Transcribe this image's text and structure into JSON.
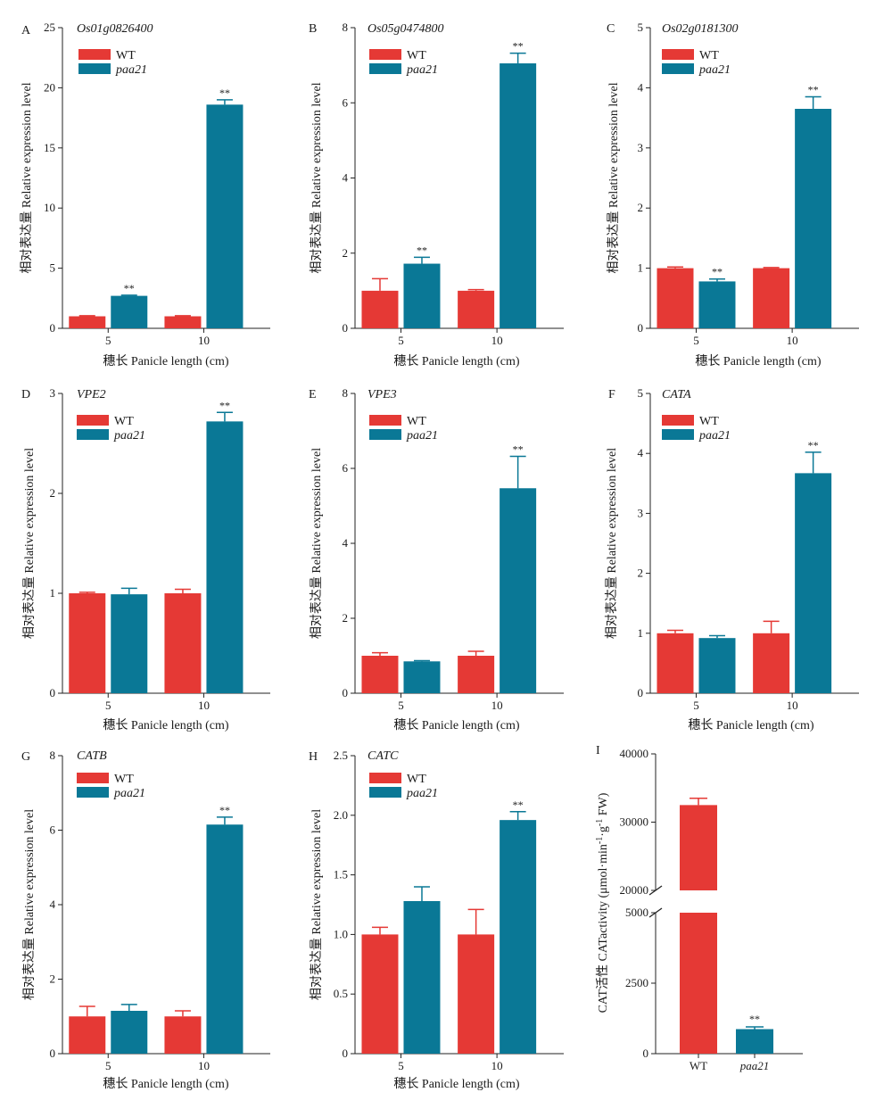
{
  "colors": {
    "WT": "#e53935",
    "paa21": "#0a7896",
    "axis": "#222222"
  },
  "legend": {
    "wt": "WT",
    "paa21": "paa21"
  },
  "chart_data": [
    {
      "type": "bar",
      "panel": "A",
      "gene": "Os01g0826400",
      "categories": [
        "5",
        "10"
      ],
      "xlabel": "穗长 Panicle length (cm)",
      "ylabel": "相对表达量 Relative expression level",
      "ylim": [
        0,
        25
      ],
      "yticks": [
        0,
        5,
        10,
        15,
        20,
        25
      ],
      "series": [
        {
          "name": "WT",
          "values": [
            1.0,
            1.0
          ],
          "errors": [
            0.05,
            0.05
          ],
          "sig": [
            "",
            ""
          ]
        },
        {
          "name": "paa21",
          "values": [
            2.7,
            18.6
          ],
          "errors": [
            0.05,
            0.4
          ],
          "sig": [
            "**",
            "**"
          ]
        }
      ]
    },
    {
      "type": "bar",
      "panel": "B",
      "gene": "Os05g0474800",
      "categories": [
        "5",
        "10"
      ],
      "xlabel": "穗长 Panicle length (cm)",
      "ylabel": "相对表达量 Relative expression level",
      "ylim": [
        0,
        8
      ],
      "yticks": [
        0,
        2,
        4,
        6,
        8
      ],
      "series": [
        {
          "name": "WT",
          "values": [
            1.0,
            1.0
          ],
          "errors": [
            0.32,
            0.03
          ],
          "sig": [
            "",
            ""
          ]
        },
        {
          "name": "paa21",
          "values": [
            1.72,
            7.05
          ],
          "errors": [
            0.17,
            0.27
          ],
          "sig": [
            "**",
            "**"
          ]
        }
      ]
    },
    {
      "type": "bar",
      "panel": "C",
      "gene": "Os02g0181300",
      "categories": [
        "5",
        "10"
      ],
      "xlabel": "穗长 Panicle length (cm)",
      "ylabel": "相对表达量 Relative expression level",
      "ylim": [
        0,
        5
      ],
      "yticks": [
        0,
        1,
        2,
        3,
        4,
        5
      ],
      "series": [
        {
          "name": "WT",
          "values": [
            1.0,
            1.0
          ],
          "errors": [
            0.02,
            0.01
          ],
          "sig": [
            "",
            ""
          ]
        },
        {
          "name": "paa21",
          "values": [
            0.78,
            3.65
          ],
          "errors": [
            0.04,
            0.2
          ],
          "sig": [
            "**",
            "**"
          ]
        }
      ]
    },
    {
      "type": "bar",
      "panel": "D",
      "gene": "VPE2",
      "categories": [
        "5",
        "10"
      ],
      "xlabel": "穗长 Panicle length (cm)",
      "ylabel": "相对表达量 Relative expression level",
      "ylim": [
        0,
        3
      ],
      "yticks": [
        0,
        1,
        2,
        3
      ],
      "series": [
        {
          "name": "WT",
          "values": [
            1.0,
            1.0
          ],
          "errors": [
            0.01,
            0.04
          ],
          "sig": [
            "",
            ""
          ]
        },
        {
          "name": "paa21",
          "values": [
            0.99,
            2.72
          ],
          "errors": [
            0.06,
            0.09
          ],
          "sig": [
            "",
            "**"
          ]
        }
      ]
    },
    {
      "type": "bar",
      "panel": "E",
      "gene": "VPE3",
      "categories": [
        "5",
        "10"
      ],
      "xlabel": "穗长 Panicle length (cm)",
      "ylabel": "相对表达量 Relative expression level",
      "ylim": [
        0,
        8
      ],
      "yticks": [
        0,
        2,
        4,
        6,
        8
      ],
      "series": [
        {
          "name": "WT",
          "values": [
            1.0,
            1.0
          ],
          "errors": [
            0.08,
            0.12
          ],
          "sig": [
            "",
            ""
          ]
        },
        {
          "name": "paa21",
          "values": [
            0.85,
            5.47
          ],
          "errors": [
            0.02,
            0.85
          ],
          "sig": [
            "",
            "**"
          ]
        }
      ]
    },
    {
      "type": "bar",
      "panel": "F",
      "gene": "CATA",
      "categories": [
        "5",
        "10"
      ],
      "xlabel": "穗长 Panicle length (cm)",
      "ylabel": "相对表达量 Relative expression level",
      "ylim": [
        0,
        5
      ],
      "yticks": [
        0,
        1,
        2,
        3,
        4,
        5
      ],
      "series": [
        {
          "name": "WT",
          "values": [
            1.0,
            1.0
          ],
          "errors": [
            0.05,
            0.2
          ],
          "sig": [
            "",
            ""
          ]
        },
        {
          "name": "paa21",
          "values": [
            0.92,
            3.67
          ],
          "errors": [
            0.04,
            0.35
          ],
          "sig": [
            "",
            "**"
          ]
        }
      ]
    },
    {
      "type": "bar",
      "panel": "G",
      "gene": "CATB",
      "categories": [
        "5",
        "10"
      ],
      "xlabel": "穗长 Panicle length (cm)",
      "ylabel": "相对表达量 Relative expression level",
      "ylim": [
        0,
        8
      ],
      "yticks": [
        0,
        2,
        4,
        6,
        8
      ],
      "series": [
        {
          "name": "WT",
          "values": [
            1.0,
            1.0
          ],
          "errors": [
            0.27,
            0.15
          ],
          "sig": [
            "",
            ""
          ]
        },
        {
          "name": "paa21",
          "values": [
            1.15,
            6.15
          ],
          "errors": [
            0.17,
            0.2
          ],
          "sig": [
            "",
            "**"
          ]
        }
      ]
    },
    {
      "type": "bar",
      "panel": "H",
      "gene": "CATC",
      "categories": [
        "5",
        "10"
      ],
      "xlabel": "穗长 Panicle length (cm)",
      "ylabel": "相对表达量 Relative expression level",
      "ylim": [
        0,
        2.5
      ],
      "yticks": [
        "0",
        "0.5",
        "1.0",
        "1.5",
        "2.0",
        "2.5"
      ],
      "series": [
        {
          "name": "WT",
          "values": [
            1.0,
            1.0
          ],
          "errors": [
            0.06,
            0.21
          ],
          "sig": [
            "",
            ""
          ]
        },
        {
          "name": "paa21",
          "values": [
            1.28,
            1.96
          ],
          "errors": [
            0.12,
            0.07
          ],
          "sig": [
            "",
            "**"
          ]
        }
      ]
    },
    {
      "type": "bar",
      "panel": "I",
      "categories": [
        "WT",
        "paa21"
      ],
      "ylabel_parts": [
        "CAT活性 CATactivity (μmol·min",
        "-1",
        "·g",
        "-1",
        " FW)"
      ],
      "broken_axis": true,
      "yticks_lower": [
        0,
        2500,
        5000
      ],
      "yticks_upper": [
        20000,
        30000,
        40000
      ],
      "values": [
        32500,
        870
      ],
      "errors": [
        1000,
        80
      ],
      "sig": [
        "",
        "**"
      ]
    }
  ]
}
